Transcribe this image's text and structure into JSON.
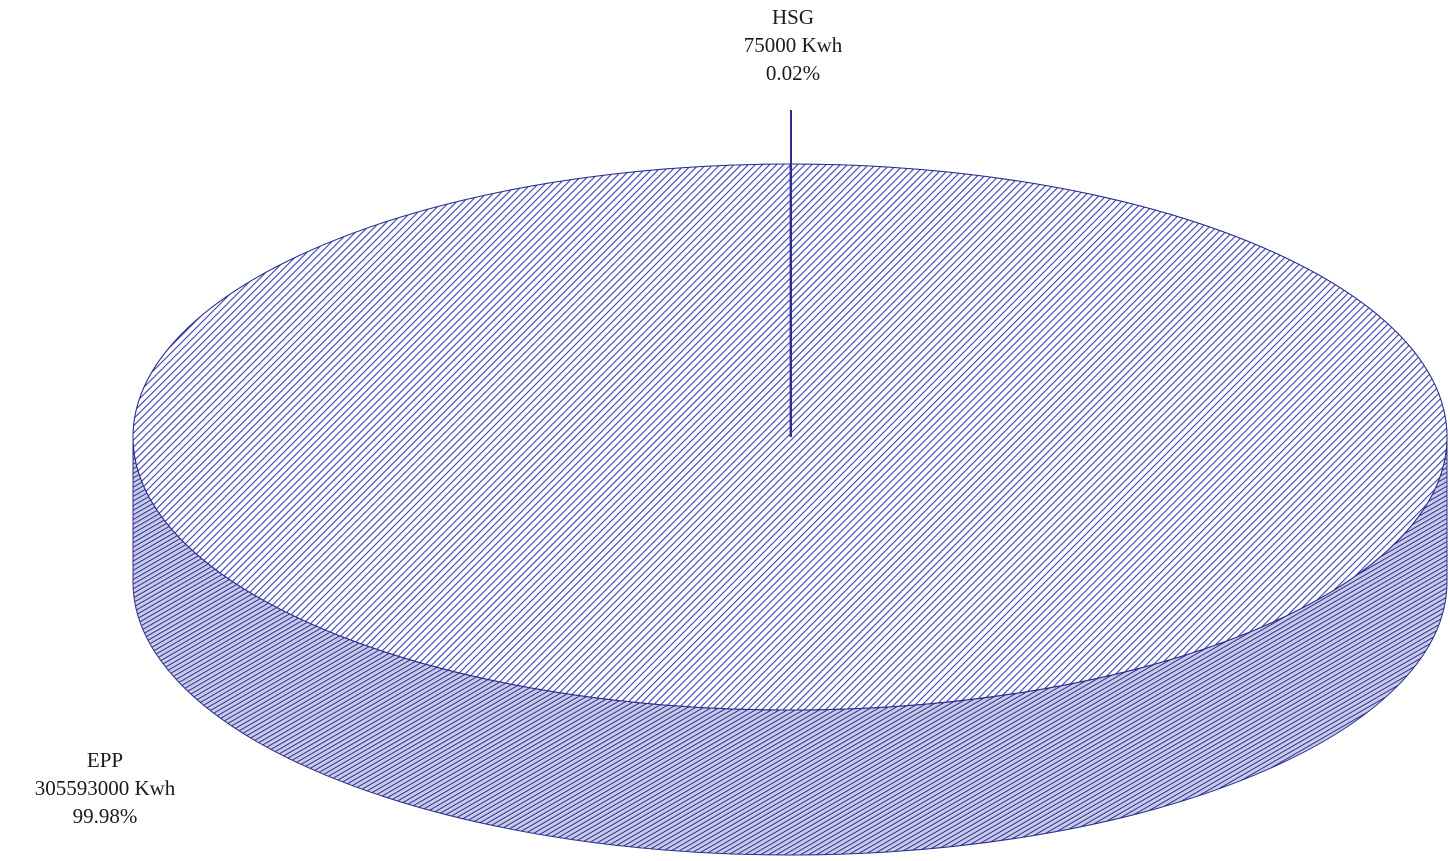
{
  "chart_data": {
    "type": "pie",
    "style": "3d",
    "slices": [
      {
        "name": "HSG",
        "value": 75000,
        "unit": "Kwh",
        "percent": "0.02%"
      },
      {
        "name": "EPP",
        "value": 305593000,
        "unit": "Kwh",
        "percent": "99.98%"
      }
    ],
    "value_labels": [
      "75000 Kwh",
      "305593000 Kwh"
    ],
    "colors": {
      "top_hatch": "#3a3fb8",
      "top_base": "#ffffff",
      "side_hatch": "#2b3094",
      "side_base": "#c9cbe6",
      "leader_line": "#2a2f8f"
    }
  }
}
